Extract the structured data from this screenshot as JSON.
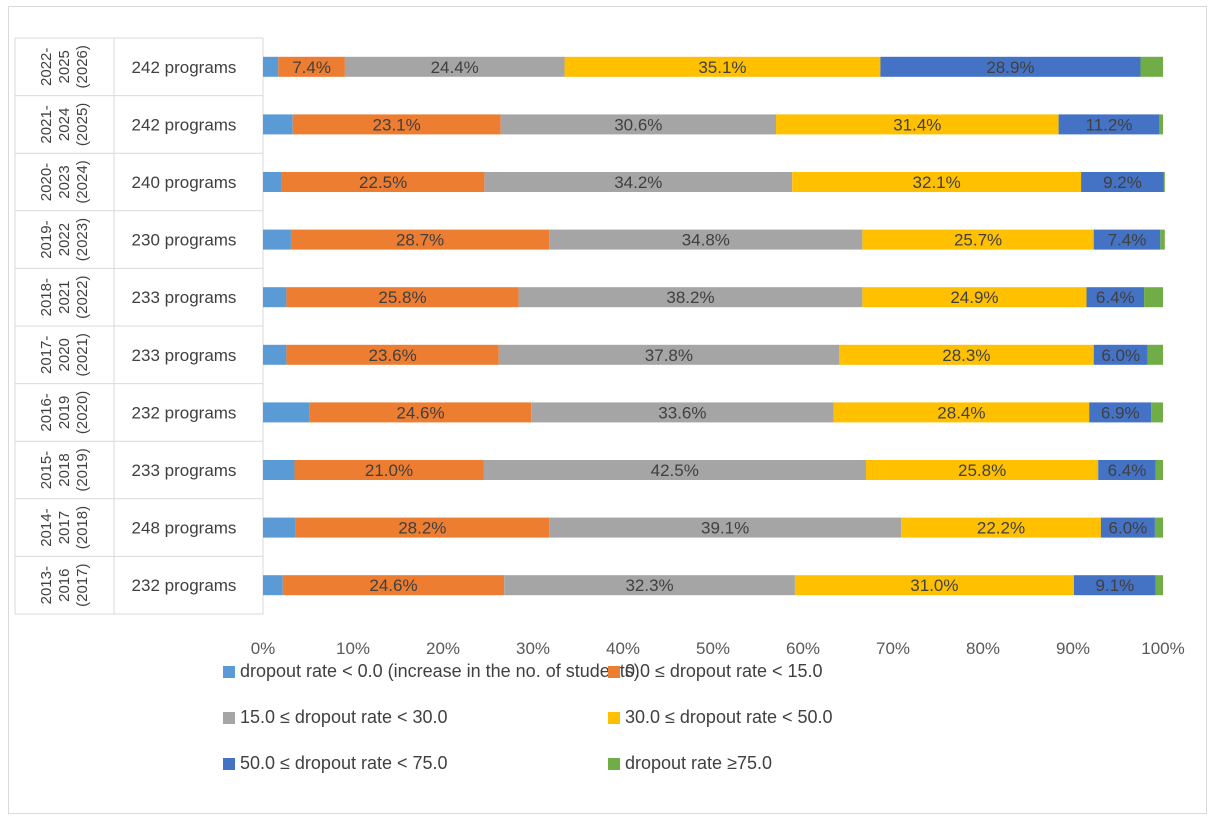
{
  "chart_data": {
    "type": "bar",
    "orientation": "horizontal",
    "stacked": "percent",
    "title": "",
    "xlabel": "",
    "ylabel": "",
    "xlim": [
      0,
      100
    ],
    "x_ticks": [
      "0%",
      "10%",
      "20%",
      "30%",
      "40%",
      "50%",
      "60%",
      "70%",
      "80%",
      "90%",
      "100%"
    ],
    "gridlines": false,
    "legend_position": "bottom",
    "periods": [
      [
        "2022-",
        "2025",
        "(2026)"
      ],
      [
        "2021-",
        "2024",
        "(2025)"
      ],
      [
        "2020-",
        "2023",
        "(2024)"
      ],
      [
        "2019-",
        "2022",
        "(2023)"
      ],
      [
        "2018-",
        "2021",
        "(2022)"
      ],
      [
        "2017-",
        "2020",
        "(2021)"
      ],
      [
        "2016-",
        "2019",
        "(2020)"
      ],
      [
        "2015-",
        "2018",
        "(2019)"
      ],
      [
        "2014-",
        "2017",
        "(2018)"
      ],
      [
        "2013-",
        "2016",
        "(2017)"
      ]
    ],
    "categories": [
      "242 programs",
      "242 programs",
      "240 programs",
      "230 programs",
      "233 programs",
      "233 programs",
      "232 programs",
      "233 programs",
      "248 programs",
      "232 programs"
    ],
    "series": [
      {
        "name": "dropout rate  < 0.0 (increase in the no. of students)",
        "color": "#5b9bd5",
        "values": [
          1.7,
          3.3,
          2.1,
          3.1,
          2.6,
          2.6,
          5.2,
          3.5,
          3.6,
          2.2
        ]
      },
      {
        "name": "0.0 ≤ dropout rate < 15.0",
        "color": "#ed7d31",
        "values": [
          7.4,
          23.1,
          22.5,
          28.7,
          25.8,
          23.6,
          24.6,
          21.0,
          28.2,
          24.6
        ]
      },
      {
        "name": "15.0 ≤ dropout rate < 30.0",
        "color": "#a5a5a5",
        "values": [
          24.4,
          30.6,
          34.2,
          34.8,
          38.2,
          37.8,
          33.6,
          42.5,
          39.1,
          32.3
        ]
      },
      {
        "name": "30.0 ≤ dropout rate < 50.0",
        "color": "#ffc000",
        "values": [
          35.1,
          31.4,
          32.1,
          25.7,
          24.9,
          28.3,
          28.4,
          25.8,
          22.2,
          31.0
        ]
      },
      {
        "name": "50.0 ≤ dropout rate < 75.0",
        "color": "#4472c4",
        "values": [
          28.9,
          11.2,
          9.2,
          7.4,
          6.4,
          6.0,
          6.9,
          6.4,
          6.0,
          9.1
        ]
      },
      {
        "name": "dropout rate ≥75.0",
        "color": "#70ad47",
        "values": [
          2.5,
          0.4,
          0.1,
          0.5,
          2.1,
          1.7,
          1.3,
          0.8,
          0.9,
          0.8
        ]
      }
    ],
    "data_labels": [
      [
        null,
        "7.4%",
        "24.4%",
        "35.1%",
        "28.9%",
        null
      ],
      [
        null,
        "23.1%",
        "30.6%",
        "31.4%",
        "11.2%",
        null
      ],
      [
        null,
        "22.5%",
        "34.2%",
        "32.1%",
        "9.2%",
        null
      ],
      [
        null,
        "28.7%",
        "34.8%",
        "25.7%",
        "7.4%",
        null
      ],
      [
        null,
        "25.8%",
        "38.2%",
        "24.9%",
        "6.4%",
        null
      ],
      [
        null,
        "23.6%",
        "37.8%",
        "28.3%",
        "6.0%",
        null
      ],
      [
        null,
        "24.6%",
        "33.6%",
        "28.4%",
        "6.9%",
        null
      ],
      [
        null,
        "21.0%",
        "42.5%",
        "25.8%",
        "6.4%",
        null
      ],
      [
        null,
        "28.2%",
        "39.1%",
        "22.2%",
        "6.0%",
        null
      ],
      [
        null,
        "24.6%",
        "32.3%",
        "31.0%",
        "9.1%",
        null
      ]
    ]
  }
}
